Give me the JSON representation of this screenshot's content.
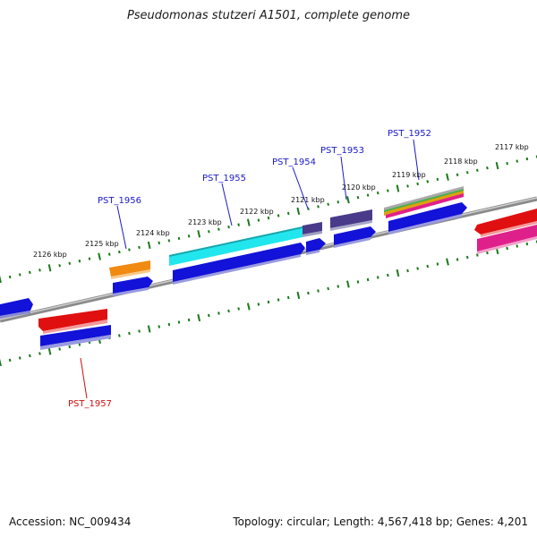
{
  "title": "Pseudomonas stutzeri A1501, complete genome",
  "footer": {
    "accession": "Accession: NC_009434",
    "summary": "Topology: circular; Length: 4,567,418 bp; Genes: 4,201"
  },
  "kbp_labels": [
    "2117 kbp",
    "2118 kbp",
    "2119 kbp",
    "2120 kbp",
    "2121 kbp",
    "2122 kbp",
    "2123 kbp",
    "2124 kbp",
    "2125 kbp",
    "2126 kbp"
  ],
  "gene_labels": [
    {
      "name": "PST_1952",
      "color": "#1a1ac8"
    },
    {
      "name": "PST_1953",
      "color": "#1a1ac8"
    },
    {
      "name": "PST_1954",
      "color": "#1a1ac8"
    },
    {
      "name": "PST_1955",
      "color": "#1a1ac8"
    },
    {
      "name": "PST_1956",
      "color": "#1a1ac8"
    },
    {
      "name": "PST_1957",
      "color": "#d01010"
    }
  ],
  "colors": {
    "backbone": "#8a8a8a",
    "tick": "#1a7a1a",
    "gene_blue": "#1212d8",
    "gene_red": "#e01010",
    "gene_pink": "#e0208a",
    "gene_cyan": "#22e6ee",
    "gene_orange": "#f08a10",
    "gene_purple": "#4a3a8a"
  }
}
